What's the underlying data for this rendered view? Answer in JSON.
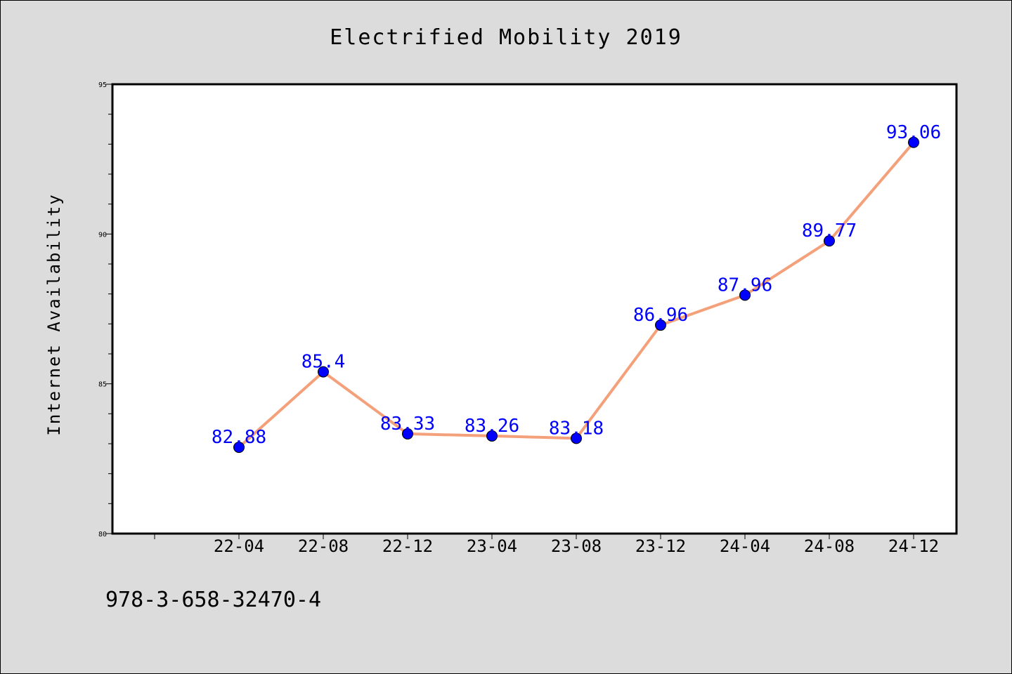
{
  "chart_data": {
    "type": "line",
    "title": "Electrified Mobility 2019",
    "xlabel": "",
    "ylabel": "Internet Availability",
    "categories": [
      "22-04",
      "22-08",
      "22-12",
      "23-04",
      "23-08",
      "23-12",
      "24-04",
      "24-08",
      "24-12"
    ],
    "series": [
      {
        "values": [
          82.88,
          85.4,
          83.33,
          83.26,
          83.18,
          86.96,
          87.96,
          89.77,
          93.06
        ],
        "data_labels": [
          "82.88",
          "85.4",
          "83.33",
          "83.26",
          "83.18",
          "86.96",
          "87.96",
          "89.77",
          "93.06"
        ]
      }
    ],
    "ylim": [
      80,
      95
    ],
    "yticks": [
      "80",
      "85",
      "90",
      "95"
    ],
    "grid": false,
    "line_color": "#f4a07a",
    "marker_color": "#0000ff",
    "label_color": "#0000ff"
  },
  "footer": {
    "isbn": "978-3-658-32470-4"
  }
}
